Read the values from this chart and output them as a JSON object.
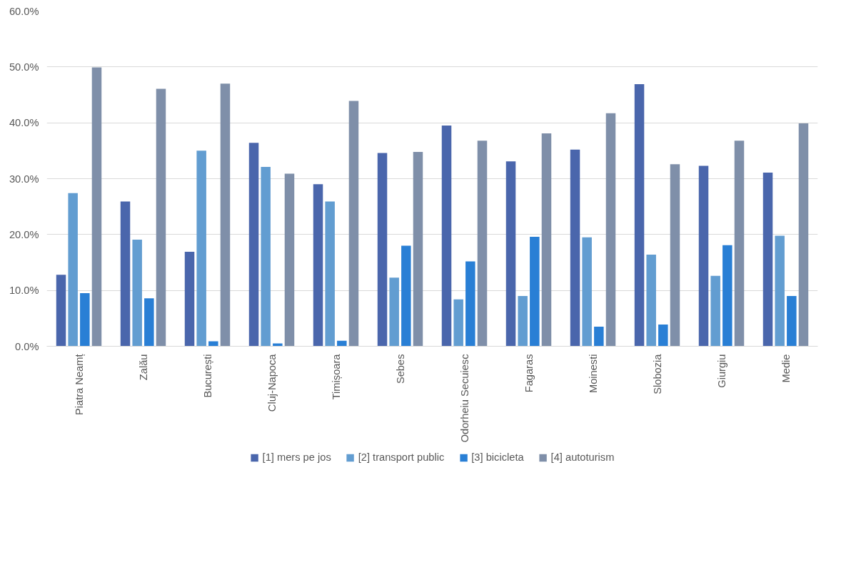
{
  "chart_data": {
    "type": "bar",
    "categories": [
      "Piatra Neamț",
      "Zalău",
      "București",
      "Cluj-Napoca",
      "Timișoara",
      "Sebes",
      "Odorheiu Secuiesc",
      "Fagaras",
      "Moinesti",
      "Slobozia",
      "Giurgiu",
      "Medie"
    ],
    "series": [
      {
        "name": "[1] mers pe jos",
        "color": "#4a66ac",
        "values": [
          12.8,
          25.9,
          16.9,
          36.4,
          29.0,
          34.6,
          39.5,
          33.1,
          35.2,
          46.9,
          32.3,
          31.1
        ]
      },
      {
        "name": "[2] transport public",
        "color": "#629dd1",
        "values": [
          27.4,
          19.1,
          35.0,
          32.1,
          25.9,
          12.3,
          8.4,
          9.0,
          19.5,
          16.4,
          12.6,
          19.8
        ]
      },
      {
        "name": "[3] bicicleta",
        "color": "#297fd5",
        "values": [
          9.5,
          8.6,
          0.9,
          0.5,
          1.0,
          18.0,
          15.2,
          19.6,
          3.5,
          3.9,
          18.1,
          9.0
        ]
      },
      {
        "name": "[4] autoturism",
        "color": "#7f8fa9",
        "values": [
          49.9,
          46.1,
          47.0,
          30.9,
          43.9,
          34.8,
          36.8,
          38.1,
          41.7,
          32.6,
          36.8,
          39.9
        ]
      }
    ],
    "ylim": [
      0,
      60
    ],
    "yticks": [
      {
        "value": 0,
        "label": "0.0%"
      },
      {
        "value": 10,
        "label": "10.0%"
      },
      {
        "value": 20,
        "label": "20.0%"
      },
      {
        "value": 30,
        "label": "30.0%"
      },
      {
        "value": 40,
        "label": "40.0%"
      },
      {
        "value": 50,
        "label": "50.0%"
      },
      {
        "value": 60,
        "label": "60.0%"
      }
    ],
    "grid": "y",
    "legend": "bottom"
  }
}
